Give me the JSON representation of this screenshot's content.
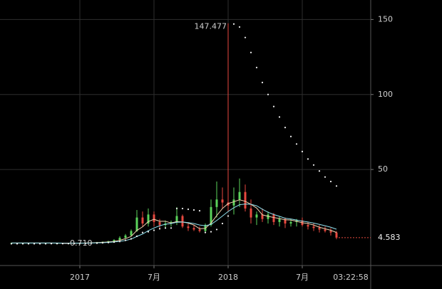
{
  "chart_data": {
    "type": "candlestick",
    "x": [
      -24,
      -22,
      -20,
      -18,
      -16,
      -14,
      -12,
      -10,
      -8,
      -6,
      -4,
      -2,
      0,
      2,
      4,
      6,
      8,
      10,
      12,
      14,
      16,
      18,
      20,
      22,
      24,
      26,
      28,
      30,
      32,
      34,
      36,
      38,
      40,
      42,
      44,
      46,
      48,
      50,
      52,
      54,
      56,
      58,
      60,
      62,
      64,
      66,
      68,
      70,
      72,
      74,
      76,
      78,
      80,
      82,
      84,
      86,
      88,
      90
    ],
    "open": [
      0.9,
      1.0,
      0.9,
      1.0,
      1.1,
      1.0,
      0.9,
      1.0,
      0.9,
      0.9,
      0.8,
      0.9,
      0.8,
      1.0,
      1.2,
      1.4,
      1.5,
      1.8,
      2.2,
      3.0,
      4.5,
      6.0,
      9.0,
      18,
      14,
      20,
      15,
      13,
      14,
      15,
      19,
      12,
      11,
      10,
      9,
      13,
      25,
      30,
      28,
      26,
      30,
      35,
      24,
      18,
      20,
      17,
      20,
      15,
      17,
      14,
      15,
      16,
      13,
      12,
      11,
      10,
      9,
      8
    ],
    "high": [
      1.3,
      1.2,
      1.1,
      1.2,
      1.3,
      1.2,
      1.1,
      1.2,
      1.1,
      1.0,
      1.0,
      1.0,
      1.1,
      1.3,
      1.5,
      1.7,
      2.0,
      2.5,
      3.5,
      5.5,
      7.0,
      10,
      23,
      22,
      24,
      22,
      17,
      16,
      16,
      25,
      20,
      14,
      13,
      12,
      14,
      30,
      42,
      38,
      147.477,
      38,
      44,
      40,
      30,
      22,
      24,
      22,
      21,
      19,
      18,
      17,
      17,
      18,
      15,
      14,
      13,
      12,
      11,
      9
    ],
    "low": [
      0.8,
      0.8,
      0.8,
      0.9,
      0.9,
      0.8,
      0.8,
      0.9,
      0.8,
      0.8,
      0.75,
      0.71,
      0.8,
      0.9,
      1.1,
      1.2,
      1.4,
      1.6,
      2.0,
      2.8,
      4.0,
      5.5,
      8.5,
      12,
      12,
      12,
      11,
      11,
      12,
      13,
      11,
      9,
      9,
      8,
      8,
      12,
      18,
      24,
      22,
      20,
      25,
      22,
      14,
      13,
      15,
      14,
      13,
      12,
      11,
      12,
      12,
      12,
      10,
      9,
      8,
      8,
      6,
      3.5
    ],
    "close": [
      1.0,
      0.9,
      1.0,
      1.1,
      1.0,
      0.9,
      1.0,
      0.9,
      0.9,
      0.8,
      0.9,
      0.8,
      1.0,
      1.2,
      1.4,
      1.5,
      1.8,
      2.2,
      3.0,
      4.5,
      6.0,
      9.0,
      18,
      14,
      20,
      15,
      13,
      14,
      15,
      19,
      12,
      11,
      10,
      9,
      13,
      25,
      30,
      28,
      26,
      30,
      35,
      24,
      18,
      20,
      17,
      20,
      15,
      17,
      14,
      15,
      16,
      13,
      12,
      11,
      10,
      9,
      8,
      4.583
    ],
    "up_color": "#5bd35b",
    "down_color": "#e8493f",
    "lines": [
      {
        "color": "#f3d2b0",
        "values": [
          1.0,
          1.0,
          1.0,
          1.0,
          1.0,
          1.0,
          1.0,
          1.0,
          0.9,
          0.9,
          0.9,
          0.9,
          0.9,
          1.0,
          1.1,
          1.3,
          1.5,
          1.7,
          2.1,
          2.8,
          3.9,
          5.4,
          9.4,
          11.8,
          15.3,
          16.8,
          15.5,
          15.5,
          14.3,
          15.3,
          15.0,
          14.3,
          13.0,
          10.5,
          10.8,
          14.3,
          19.3,
          24.0,
          27.3,
          28.5,
          29.8,
          28.8,
          26.8,
          24.3,
          19.8,
          18.8,
          18.0,
          17.3,
          16.5,
          16.3,
          15.5,
          14.5,
          14.0,
          13.0,
          11.5,
          10.5,
          9.5,
          8.0
        ]
      },
      {
        "color": "#8fe0ee",
        "values": [
          1.0,
          1.0,
          1.0,
          1.0,
          1.0,
          1.0,
          1.0,
          1.0,
          1.0,
          0.9,
          0.9,
          0.9,
          0.9,
          0.9,
          1.0,
          1.1,
          1.2,
          1.4,
          1.7,
          2.1,
          2.7,
          3.6,
          5.4,
          7.0,
          9.2,
          11.0,
          12.5,
          13.5,
          14.0,
          14.8,
          15.0,
          14.6,
          14.0,
          13.0,
          12.5,
          13.4,
          16.0,
          19.0,
          22.0,
          24.5,
          26.5,
          27.0,
          26.8,
          25.8,
          23.5,
          21.5,
          20.0,
          18.8,
          17.5,
          17.0,
          16.3,
          15.6,
          15.0,
          14.3,
          13.4,
          12.5,
          11.5,
          10.2
        ]
      }
    ],
    "sar": {
      "color": "#f2f2f2",
      "values": [
        0.5,
        0.5,
        0.5,
        0.5,
        0.5,
        0.5,
        0.5,
        0.6,
        0.6,
        0.6,
        0.6,
        0.6,
        0.7,
        0.75,
        0.8,
        0.9,
        1.1,
        1.3,
        1.6,
        2.0,
        2.8,
        3.8,
        5.5,
        8.0,
        8.5,
        9.5,
        10.5,
        11.0,
        11.0,
        24,
        24,
        23.5,
        23,
        22.5,
        8,
        8.5,
        10,
        14,
        19,
        147,
        145,
        138,
        128,
        118,
        108,
        100,
        92,
        85,
        78,
        72,
        67,
        62,
        57,
        53,
        49,
        45,
        42,
        39
      ]
    },
    "xlim": [
      -28,
      102
    ],
    "xticks": [
      {
        "value": 0,
        "label": "2017"
      },
      {
        "value": 26,
        "label": "7月"
      },
      {
        "value": 52,
        "label": "2018"
      },
      {
        "value": 78,
        "label": "7月"
      }
    ],
    "ylim": [
      -14,
      163
    ],
    "yticks": [
      50,
      100,
      150
    ],
    "grid": true,
    "low_label": "0.710",
    "countdown": "03:22:58"
  }
}
